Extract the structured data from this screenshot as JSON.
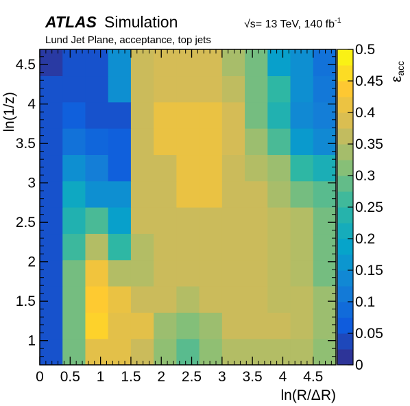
{
  "chart_data": {
    "type": "heatmap",
    "title": "ATLAS Simulation",
    "experiment": "ATLAS",
    "experiment_status": "Simulation",
    "energy_label": "= 13 TeV, 140 fb",
    "energy_prefix": "√s",
    "lumi_exponent": "-1",
    "subtitle": "Lund Jet Plane, acceptance, top jets",
    "xlabel": "ln(R/ΔR)",
    "ylabel": "ln(1/z)",
    "colorbar_label": "ε",
    "colorbar_label_sub": "acc",
    "xlim": [
      0,
      4.875
    ],
    "ylim": [
      0.693,
      4.693
    ],
    "zlim": [
      0,
      0.5
    ],
    "x_ticks": [
      0,
      0.5,
      1,
      1.5,
      2,
      2.5,
      3,
      3.5,
      4,
      4.5
    ],
    "x_tick_labels": [
      "0",
      "0.5",
      "1",
      "1.5",
      "2",
      "2.5",
      "3",
      "3.5",
      "4",
      "4.5"
    ],
    "y_ticks": [
      1,
      1.5,
      2,
      2.5,
      3,
      3.5,
      4,
      4.5
    ],
    "y_tick_labels": [
      "1",
      "1.5",
      "2",
      "2.5",
      "3",
      "3.5",
      "4",
      "4.5"
    ],
    "z_ticks": [
      0,
      0.05,
      0.1,
      0.15,
      0.2,
      0.25,
      0.3,
      0.35,
      0.4,
      0.45,
      0.5
    ],
    "z_tick_labels": [
      "0",
      "0.05",
      "0.1",
      "0.15",
      "0.2",
      "0.25",
      "0.3",
      "0.35",
      "0.4",
      "0.45",
      "0.5"
    ],
    "x_bin_edges": [
      0,
      0.375,
      0.75,
      1.125,
      1.5,
      1.875,
      2.25,
      2.625,
      3.0,
      3.375,
      3.75,
      4.125,
      4.5,
      4.875
    ],
    "y_bin_edges": [
      0.693,
      1.026,
      1.359,
      1.693,
      2.026,
      2.359,
      2.693,
      3.026,
      3.359,
      3.693,
      4.026,
      4.359,
      4.693
    ],
    "values_rows_bottom_to_top": [
      [
        0.05,
        0.3,
        0.4,
        0.4,
        0.37,
        0.32,
        0.28,
        0.32,
        0.35,
        0.35,
        0.35,
        0.35,
        0.32
      ],
      [
        0.05,
        0.3,
        0.45,
        0.4,
        0.4,
        0.33,
        0.31,
        0.33,
        0.37,
        0.37,
        0.37,
        0.36,
        0.33
      ],
      [
        0.05,
        0.3,
        0.44,
        0.41,
        0.37,
        0.37,
        0.35,
        0.37,
        0.37,
        0.37,
        0.36,
        0.36,
        0.33
      ],
      [
        0.05,
        0.3,
        0.42,
        0.35,
        0.35,
        0.37,
        0.37,
        0.37,
        0.37,
        0.37,
        0.36,
        0.35,
        0.3
      ],
      [
        0.05,
        0.26,
        0.35,
        0.25,
        0.35,
        0.37,
        0.37,
        0.37,
        0.37,
        0.37,
        0.36,
        0.35,
        0.3
      ],
      [
        0.05,
        0.23,
        0.27,
        0.18,
        0.37,
        0.37,
        0.37,
        0.37,
        0.37,
        0.37,
        0.36,
        0.35,
        0.3
      ],
      [
        0.05,
        0.2,
        0.15,
        0.15,
        0.37,
        0.37,
        0.41,
        0.41,
        0.37,
        0.37,
        0.34,
        0.3,
        0.28
      ],
      [
        0.05,
        0.15,
        0.12,
        0.07,
        0.37,
        0.37,
        0.41,
        0.41,
        0.37,
        0.35,
        0.33,
        0.25,
        0.22
      ],
      [
        0.05,
        0.1,
        0.08,
        0.07,
        0.37,
        0.41,
        0.41,
        0.41,
        0.38,
        0.33,
        0.27,
        0.17,
        0.14
      ],
      [
        0.05,
        0.07,
        0.05,
        0.05,
        0.37,
        0.41,
        0.41,
        0.41,
        0.38,
        0.3,
        0.23,
        0.14,
        0.12
      ],
      [
        0.05,
        0.05,
        0.05,
        0.15,
        0.37,
        0.38,
        0.38,
        0.38,
        0.36,
        0.3,
        0.25,
        0.15,
        0.11
      ],
      [
        0.02,
        0.05,
        0.05,
        0.15,
        0.37,
        0.38,
        0.38,
        0.38,
        0.34,
        0.3,
        0.18,
        0.15,
        0.1
      ]
    ],
    "colormap": [
      "#352a87",
      "#0f5cdd",
      "#1481d6",
      "#06a4ca",
      "#2eb7a4",
      "#87bf77",
      "#d1bb59",
      "#fec832",
      "#f9fb0e"
    ],
    "grid": false,
    "legend": "colorbar-right"
  }
}
